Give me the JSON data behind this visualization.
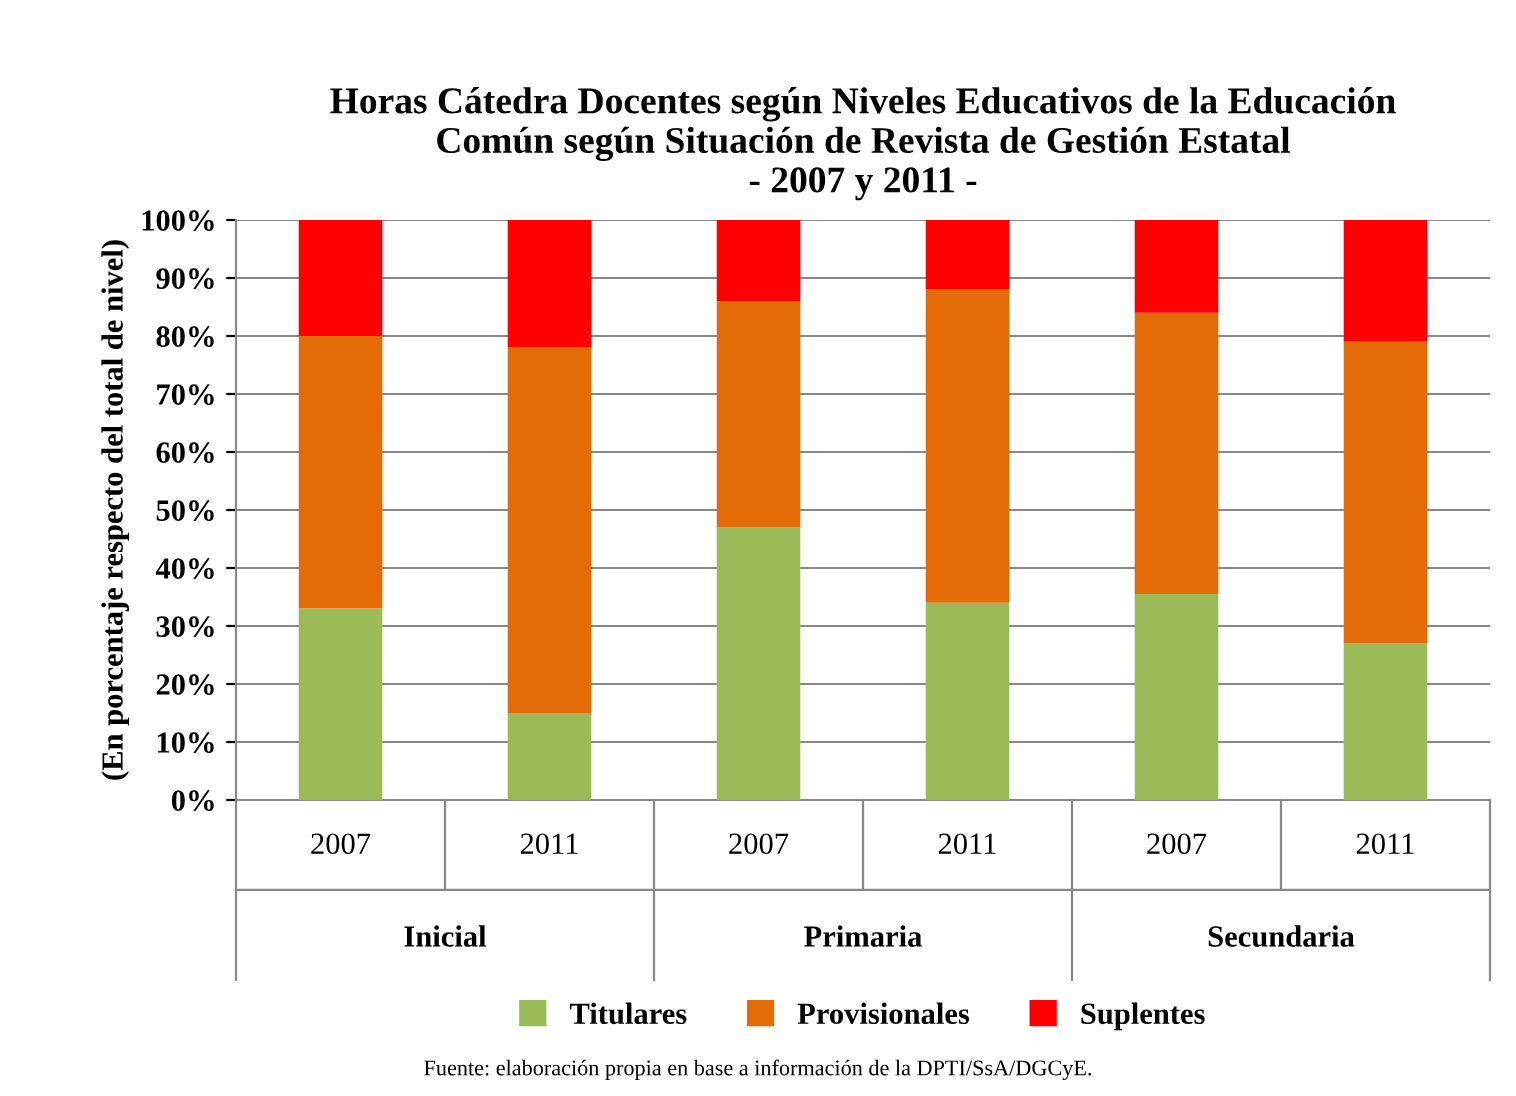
{
  "chart_data": {
    "type": "bar",
    "stacked": true,
    "title": "Horas Cátedra Docentes según Niveles Educativos de la Educación\nComún según Situación de Revista de Gestión Estatal\n- 2007 y 2011 -",
    "ylabel": "(En porcentaje respecto del total de nivel)",
    "categories": [
      "2007",
      "2011",
      "2007",
      "2011",
      "2007",
      "2011"
    ],
    "series": [
      {
        "name": "Titulares",
        "color": "#9bbb59",
        "values": [
          33,
          15,
          47,
          34,
          35.5,
          27
        ]
      },
      {
        "name": "Provisionales",
        "color": "#e36c09",
        "values": [
          47,
          63,
          39,
          54,
          48.5,
          52
        ]
      },
      {
        "name": "Suplentes",
        "color": "#ff0000",
        "values": [
          20,
          22,
          14,
          12,
          16,
          21
        ]
      }
    ],
    "ylim": [
      0,
      100
    ],
    "yticks": [
      {
        "value": 0,
        "label": "0%"
      },
      {
        "value": 10,
        "label": "10%"
      },
      {
        "value": 20,
        "label": "20%"
      },
      {
        "value": 30,
        "label": "30%"
      },
      {
        "value": 40,
        "label": "40%"
      },
      {
        "value": 50,
        "label": "50%"
      },
      {
        "value": 60,
        "label": "60%"
      },
      {
        "value": 70,
        "label": "70%"
      },
      {
        "value": 80,
        "label": "80%"
      },
      {
        "value": 90,
        "label": "90%"
      },
      {
        "value": 100,
        "label": "100%"
      }
    ],
    "grid": "y",
    "legend": "bottom",
    "annotations": [
      "Inicial",
      "Primaria",
      "Secundaria",
      "Fuente: elaboración propia en base a información de la DPTI/SsA/DGCyE."
    ]
  }
}
